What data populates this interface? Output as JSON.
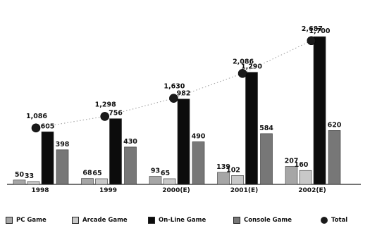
{
  "chart_data": {
    "type": "bar",
    "categories": [
      "1998",
      "1999",
      "2000(E)",
      "2001(E)",
      "2002(E)"
    ],
    "series": [
      {
        "name": "PC Game",
        "values": [
          50,
          68,
          93,
          139,
          207
        ],
        "labels": [
          "50",
          "68",
          "93",
          "139",
          "207"
        ],
        "color": "#a6a6a6"
      },
      {
        "name": "Arcade Game",
        "values": [
          33,
          65,
          65,
          102,
          160
        ],
        "labels": [
          "33",
          "65",
          "65",
          "102",
          "160"
        ],
        "color": "#c8c8c8"
      },
      {
        "name": "On-Line Game",
        "values": [
          605,
          756,
          982,
          1290,
          1700
        ],
        "labels": [
          "605",
          "756",
          "982",
          "1,290",
          "1,700"
        ],
        "color": "#0c0c0c"
      },
      {
        "name": "Console Game",
        "values": [
          398,
          430,
          490,
          584,
          620
        ],
        "labels": [
          "398",
          "430",
          "490",
          "584",
          "620"
        ],
        "color": "#777777"
      }
    ],
    "total": {
      "name": "Total",
      "type": "scatter",
      "values": [
        1086,
        1298,
        1630,
        2086,
        2687
      ],
      "labels": [
        "1,086",
        "1,298",
        "1,630",
        "2,086",
        "2,687"
      ],
      "color": "#1a1a1a"
    },
    "legend": {
      "position": "bottom"
    },
    "grid": false
  },
  "legend_items": [
    {
      "label": "PC Game",
      "color": "#a6a6a6",
      "shape": "square"
    },
    {
      "label": "Arcade Game",
      "color": "#c8c8c8",
      "shape": "square"
    },
    {
      "label": "On-Line Game",
      "color": "#0c0c0c",
      "shape": "square"
    },
    {
      "label": "Console Game",
      "color": "#777777",
      "shape": "square"
    },
    {
      "label": "Total",
      "color": "#1a1a1a",
      "shape": "circle"
    }
  ]
}
